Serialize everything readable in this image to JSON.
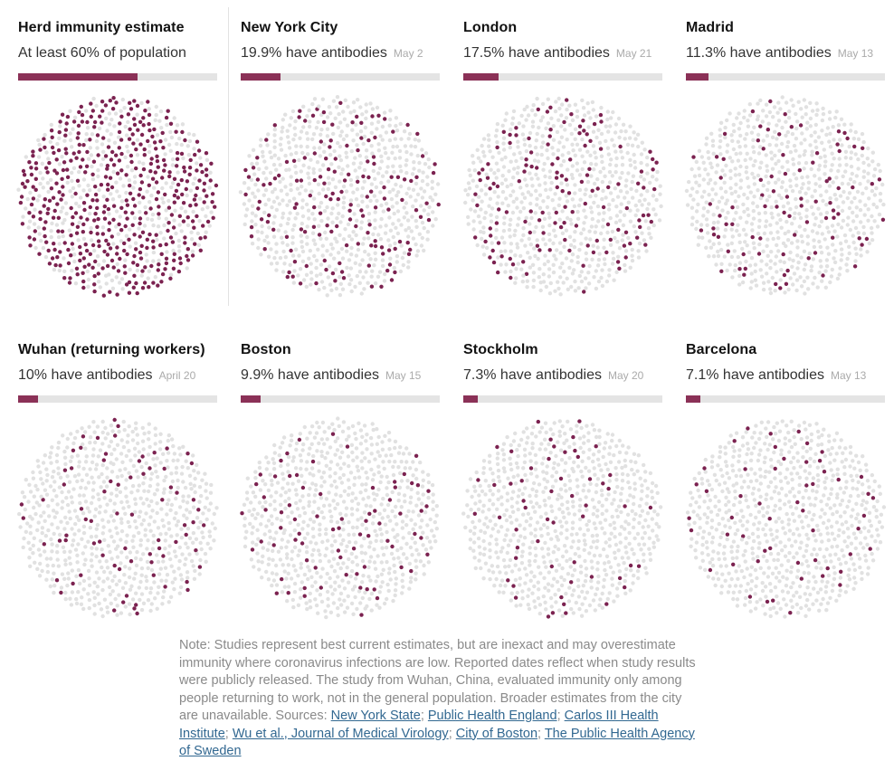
{
  "colors": {
    "dot_dark": "#7b2250",
    "dot_light": "#e1e1e1",
    "bar_fill": "#8b3157",
    "bar_bg": "#e4e4e4",
    "title_text": "#121212",
    "value_text": "#333333",
    "date_text": "#aaaaaa",
    "note_text": "#8a8a8a",
    "link_blue": "#326891"
  },
  "chart_data": {
    "type": "dot-density",
    "dots_per_circle": 750,
    "legend": "share of dots colored dark = percent with antibodies",
    "panels": [
      {
        "title": "Herd immunity estimate",
        "value_label": "At least 60% of population",
        "percent": 60,
        "date": ""
      },
      {
        "title": "New York City",
        "value_label": "19.9% have antibodies",
        "percent": 19.9,
        "date": "May 2"
      },
      {
        "title": "London",
        "value_label": "17.5% have antibodies",
        "percent": 17.5,
        "date": "May 21"
      },
      {
        "title": "Madrid",
        "value_label": "11.3% have antibodies",
        "percent": 11.3,
        "date": "May 13"
      },
      {
        "title": "Wuhan (returning workers)",
        "value_label": "10% have antibodies",
        "percent": 10,
        "date": "April 20"
      },
      {
        "title": "Boston",
        "value_label": "9.9% have antibodies",
        "percent": 9.9,
        "date": "May 15"
      },
      {
        "title": "Stockholm",
        "value_label": "7.3% have antibodies",
        "percent": 7.3,
        "date": "May 20"
      },
      {
        "title": "Barcelona",
        "value_label": "7.1% have antibodies",
        "percent": 7.1,
        "date": "May 13"
      }
    ]
  },
  "note": {
    "body": "Note: Studies represent best current estimates, but are inexact and may overestimate immunity where coronavirus infections are low. Reported dates reflect when study results were publicly released. The study from Wuhan, China, evaluated immunity only among people returning to work, not in the general population. Broader estimates from the city are unavailable. Sources: ",
    "sep": "; ",
    "links": [
      "New York State",
      "Public Health England",
      "Carlos III Health Institute",
      "Wu et al., Journal of Medical Virology",
      "City of Boston",
      "The Public Health Agency of Sweden"
    ]
  }
}
